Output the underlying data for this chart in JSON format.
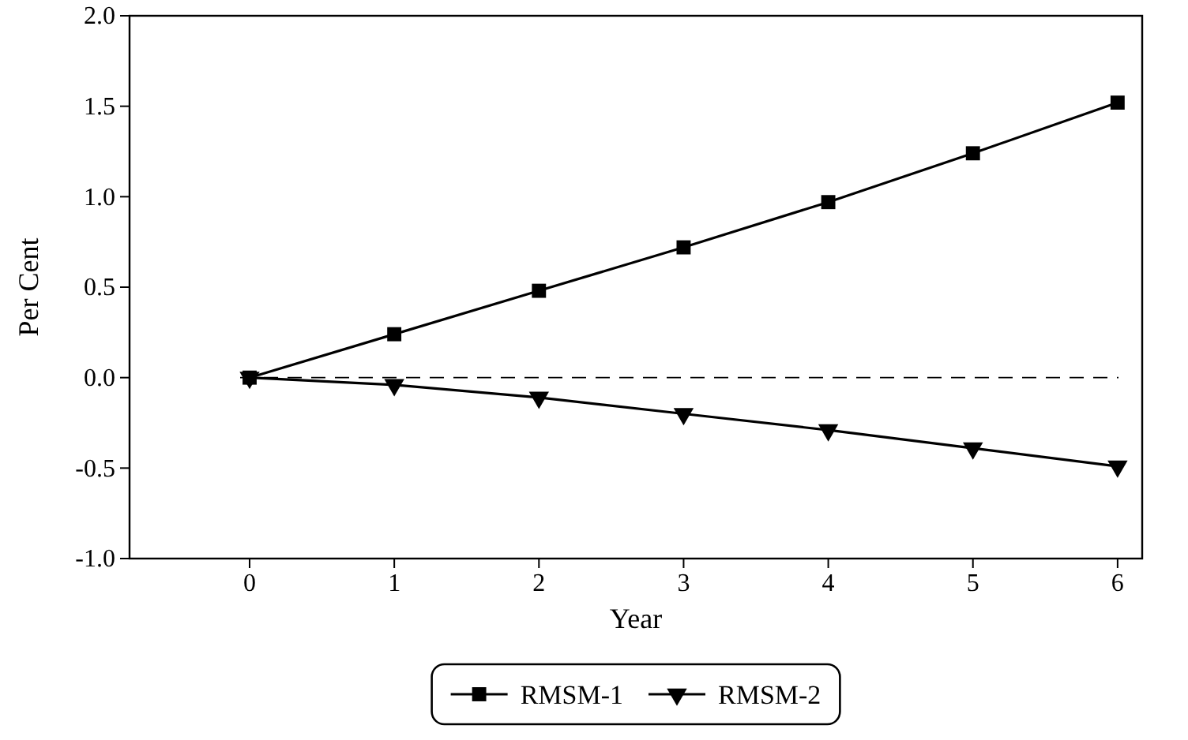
{
  "chart_data": {
    "type": "line",
    "xlabel": "Year",
    "ylabel": "Per Cent",
    "x": [
      0,
      1,
      2,
      3,
      4,
      5,
      6
    ],
    "series": [
      {
        "name": "RMSM-1",
        "color": "#000000",
        "marker": "square",
        "values": [
          0,
          0.24,
          0.48,
          0.72,
          0.97,
          1.24,
          1.52
        ]
      },
      {
        "name": "RMSM-2",
        "color": "#000000",
        "marker": "triangle",
        "values": [
          0,
          -0.04,
          -0.11,
          -0.2,
          -0.29,
          -0.39,
          -0.49
        ]
      }
    ],
    "xlim": [
      -0.83,
      6.17
    ],
    "xticks": [
      0,
      1,
      2,
      3,
      4,
      5,
      6
    ],
    "ylim": [
      -1.0,
      2.0
    ],
    "yticks": [
      {
        "value": -1,
        "label": "-1.0"
      },
      {
        "value": -0.5,
        "label": "-0.5"
      },
      {
        "value": 0,
        "label": "0.0"
      },
      {
        "value": 0.5,
        "label": "0.5"
      },
      {
        "value": 1,
        "label": "1.0"
      },
      {
        "value": 1.5,
        "label": "1.5"
      },
      {
        "value": 2,
        "label": "2.0"
      }
    ],
    "ref_lines": [
      {
        "axis": "y",
        "value": 0,
        "color": "#000000",
        "line_style": "dashed"
      }
    ],
    "legend": "bottom",
    "grid": false,
    "line_style": "solid"
  }
}
